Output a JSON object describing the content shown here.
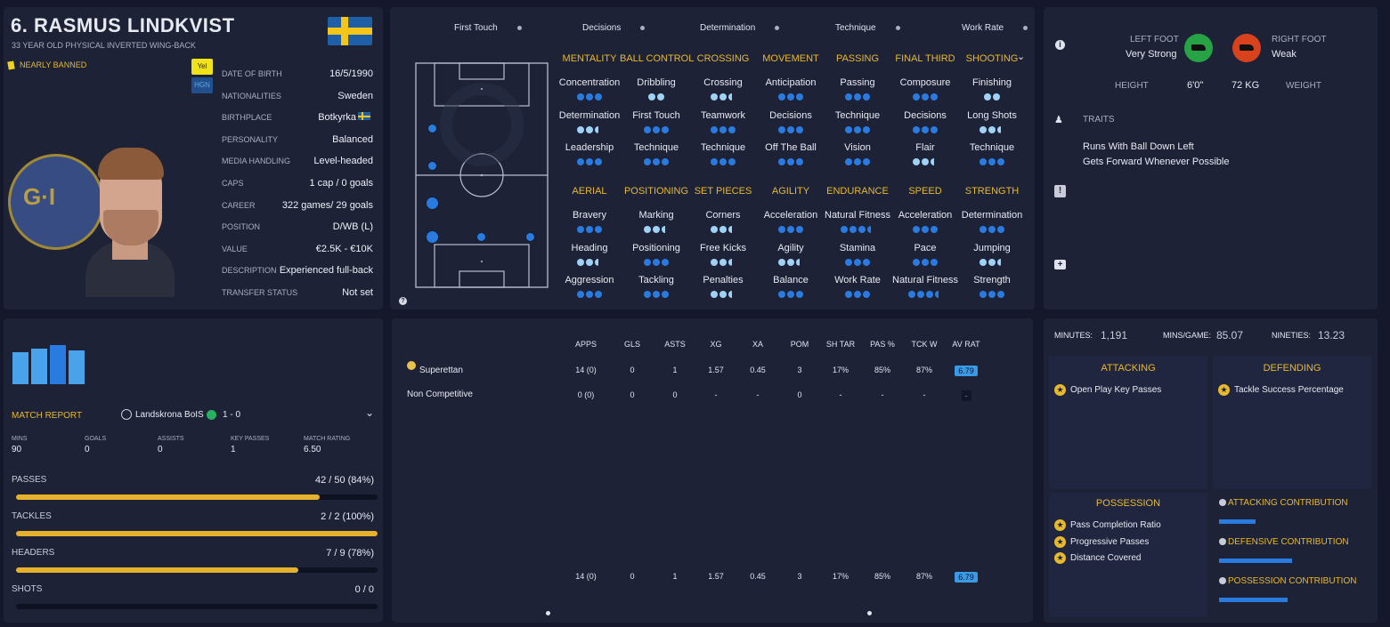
{
  "profile": {
    "title": "6. RASMUS LINDKVIST",
    "subtitle": "33 YEAR OLD PHYSICAL INVERTED WING-BACK",
    "status": "NEARLY BANNED",
    "badge_yel": "Yel",
    "badge_hgn": "HGN",
    "country_colors": {
      "blue": "#1f5fa8",
      "yellow": "#f5c518"
    },
    "rows": [
      {
        "label": "DATE OF BIRTH",
        "value": "16/5/1990"
      },
      {
        "label": "NATIONALITIES",
        "value": "Sweden"
      },
      {
        "label": "BIRTHPLACE",
        "value": "Botkyrka"
      },
      {
        "label": "PERSONALITY",
        "value": "Balanced"
      },
      {
        "label": "MEDIA HANDLING",
        "value": "Level-headed"
      },
      {
        "label": "CAPS",
        "value": "1 cap / 0 goals"
      },
      {
        "label": "CAREER",
        "value": "322  games/  29 goals"
      },
      {
        "label": "POSITION",
        "value": "D/WB (L)"
      },
      {
        "label": "VALUE",
        "value": "€2.5K - €10K"
      },
      {
        "label": "DESCRIPTION",
        "value": "Experienced full-back"
      },
      {
        "label": "TRANSFER STATUS",
        "value": "Not set"
      }
    ]
  },
  "top_attrs": [
    "First Touch",
    "Decisions",
    "Determination",
    "Technique",
    "Work Rate"
  ],
  "categories": [
    {
      "name": "MENTALITY",
      "items": [
        {
          "n": "Concentration",
          "d": "bbb"
        },
        {
          "n": "Determination",
          "d": "llh"
        },
        {
          "n": "Leadership",
          "d": "bbb"
        }
      ]
    },
    {
      "name": "BALL CONTROL",
      "items": [
        {
          "n": "Dribbling",
          "d": "ll"
        },
        {
          "n": "First Touch",
          "d": "bbb"
        },
        {
          "n": "Technique",
          "d": "bbb"
        }
      ]
    },
    {
      "name": "CROSSING",
      "items": [
        {
          "n": "Crossing",
          "d": "llh"
        },
        {
          "n": "Teamwork",
          "d": "bbb"
        },
        {
          "n": "Technique",
          "d": "bbb"
        }
      ]
    },
    {
      "name": "MOVEMENT",
      "items": [
        {
          "n": "Anticipation",
          "d": "bbb"
        },
        {
          "n": "Decisions",
          "d": "bbb"
        },
        {
          "n": "Off The Ball",
          "d": "bbb"
        }
      ]
    },
    {
      "name": "PASSING",
      "items": [
        {
          "n": "Passing",
          "d": "bbb"
        },
        {
          "n": "Technique",
          "d": "bbb"
        },
        {
          "n": "Vision",
          "d": "bbb"
        }
      ]
    },
    {
      "name": "FINAL THIRD",
      "items": [
        {
          "n": "Composure",
          "d": "bbb"
        },
        {
          "n": "Decisions",
          "d": "bbb"
        },
        {
          "n": "Flair",
          "d": "llh"
        }
      ]
    },
    {
      "name": "SHOOTING",
      "items": [
        {
          "n": "Finishing",
          "d": "ll"
        },
        {
          "n": "Long Shots",
          "d": "llh"
        },
        {
          "n": "Technique",
          "d": "bbb"
        }
      ]
    },
    {
      "name": "AERIAL",
      "items": [
        {
          "n": "Bravery",
          "d": "bbb"
        },
        {
          "n": "Heading",
          "d": "llh"
        },
        {
          "n": "Aggression",
          "d": "bbb"
        }
      ]
    },
    {
      "name": "POSITIONING",
      "items": [
        {
          "n": "Marking",
          "d": "llh"
        },
        {
          "n": "Positioning",
          "d": "bbb"
        },
        {
          "n": "Tackling",
          "d": "bbb"
        }
      ]
    },
    {
      "name": "SET PIECES",
      "items": [
        {
          "n": "Corners",
          "d": "llh"
        },
        {
          "n": "Free Kicks",
          "d": "llh"
        },
        {
          "n": "Penalties",
          "d": "llh"
        }
      ]
    },
    {
      "name": "AGILITY",
      "items": [
        {
          "n": "Acceleration",
          "d": "bbb"
        },
        {
          "n": "Agility",
          "d": "llh"
        },
        {
          "n": "Balance",
          "d": "bbb"
        }
      ]
    },
    {
      "name": "ENDURANCE",
      "items": [
        {
          "n": "Natural Fitness",
          "d": "bbbh"
        },
        {
          "n": "Stamina",
          "d": "bbb"
        },
        {
          "n": "Work Rate",
          "d": "bbb"
        }
      ]
    },
    {
      "name": "SPEED",
      "items": [
        {
          "n": "Acceleration",
          "d": "bbb"
        },
        {
          "n": "Pace",
          "d": "bbb"
        },
        {
          "n": "Natural Fitness",
          "d": "bbbh"
        }
      ]
    },
    {
      "name": "STRENGTH",
      "items": [
        {
          "n": "Determination",
          "d": "bbb"
        },
        {
          "n": "Jumping",
          "d": "llh"
        },
        {
          "n": "Strength",
          "d": "bbb"
        }
      ]
    }
  ],
  "feet": {
    "left_label": "LEFT FOOT",
    "left_value": "Very Strong",
    "left_color": "#27a244",
    "right_label": "RIGHT FOOT",
    "right_value": "Weak",
    "right_color": "#d8421d",
    "height_label": "HEIGHT",
    "height": "6'0\"",
    "weight": "72 KG",
    "weight_label": "WEIGHT"
  },
  "traits": {
    "title": "TRAITS",
    "items": [
      "Runs With Ball Down Left",
      "Gets Forward Whenever Possible"
    ]
  },
  "match": {
    "label": "MATCH REPORT",
    "opponent": "Landskrona BoIS",
    "score": "1 - 0",
    "stats": [
      {
        "label": "MINS",
        "value": "90"
      },
      {
        "label": "GOALS",
        "value": "0"
      },
      {
        "label": "ASSISTS",
        "value": "0"
      },
      {
        "label": "KEY PASSES",
        "value": "1"
      },
      {
        "label": "MATCH RATING",
        "value": "6.50"
      }
    ],
    "bars": [
      {
        "label": "PASSES",
        "value": "42 / 50 (84%)",
        "fraction": 0.84
      },
      {
        "label": "TACKLES",
        "value": "2 / 2 (100%)",
        "fraction": 1.0
      },
      {
        "label": "HEADERS",
        "value": "7 / 9 (78%)",
        "fraction": 0.78
      },
      {
        "label": "SHOTS",
        "value": "0 / 0",
        "fraction": 0
      }
    ],
    "form_bars": [
      0.82,
      0.9,
      1.0,
      0.86
    ]
  },
  "stats_table": {
    "headers": [
      "APPS",
      "GLS",
      "ASTS",
      "XG",
      "XA",
      "POM",
      "SH TAR",
      "PAS %",
      "TCK W",
      "AV RAT"
    ],
    "rows": [
      {
        "name": "Superettan",
        "cells": [
          "14 (0)",
          "0",
          "1",
          "1.57",
          "0.45",
          "3",
          "17%",
          "85%",
          "87%",
          "6.79"
        ]
      },
      {
        "name": "Non Competitive",
        "cells": [
          "0 (0)",
          "0",
          "0",
          "-",
          "-",
          "0",
          "-",
          "-",
          "-",
          "-"
        ]
      }
    ],
    "totals": [
      "14 (0)",
      "0",
      "1",
      "1.57",
      "0.45",
      "3",
      "17%",
      "85%",
      "87%",
      "6.79"
    ]
  },
  "summary": {
    "minutes_label": "MINUTES:",
    "minutes": "1,191",
    "mpg_label": "MINS/GAME:",
    "mpg": "85.07",
    "nineties_label": "NINETIES:",
    "nineties": "13.23"
  },
  "roles": {
    "attacking_title": "ATTACKING",
    "attacking": [
      "Open Play Key Passes"
    ],
    "defending_title": "DEFENDING",
    "defending": [
      "Tackle Success Percentage"
    ],
    "possession_title": "POSSESSION",
    "possession": [
      "Pass Completion Ratio",
      "Progressive Passes",
      "Distance Covered"
    ],
    "contributions": [
      {
        "label": "ATTACKING CONTRIBUTION",
        "fraction": 0.25
      },
      {
        "label": "DEFENSIVE CONTRIBUTION",
        "fraction": 0.5
      },
      {
        "label": "POSSESSION CONTRIBUTION",
        "fraction": 0.47
      }
    ]
  }
}
